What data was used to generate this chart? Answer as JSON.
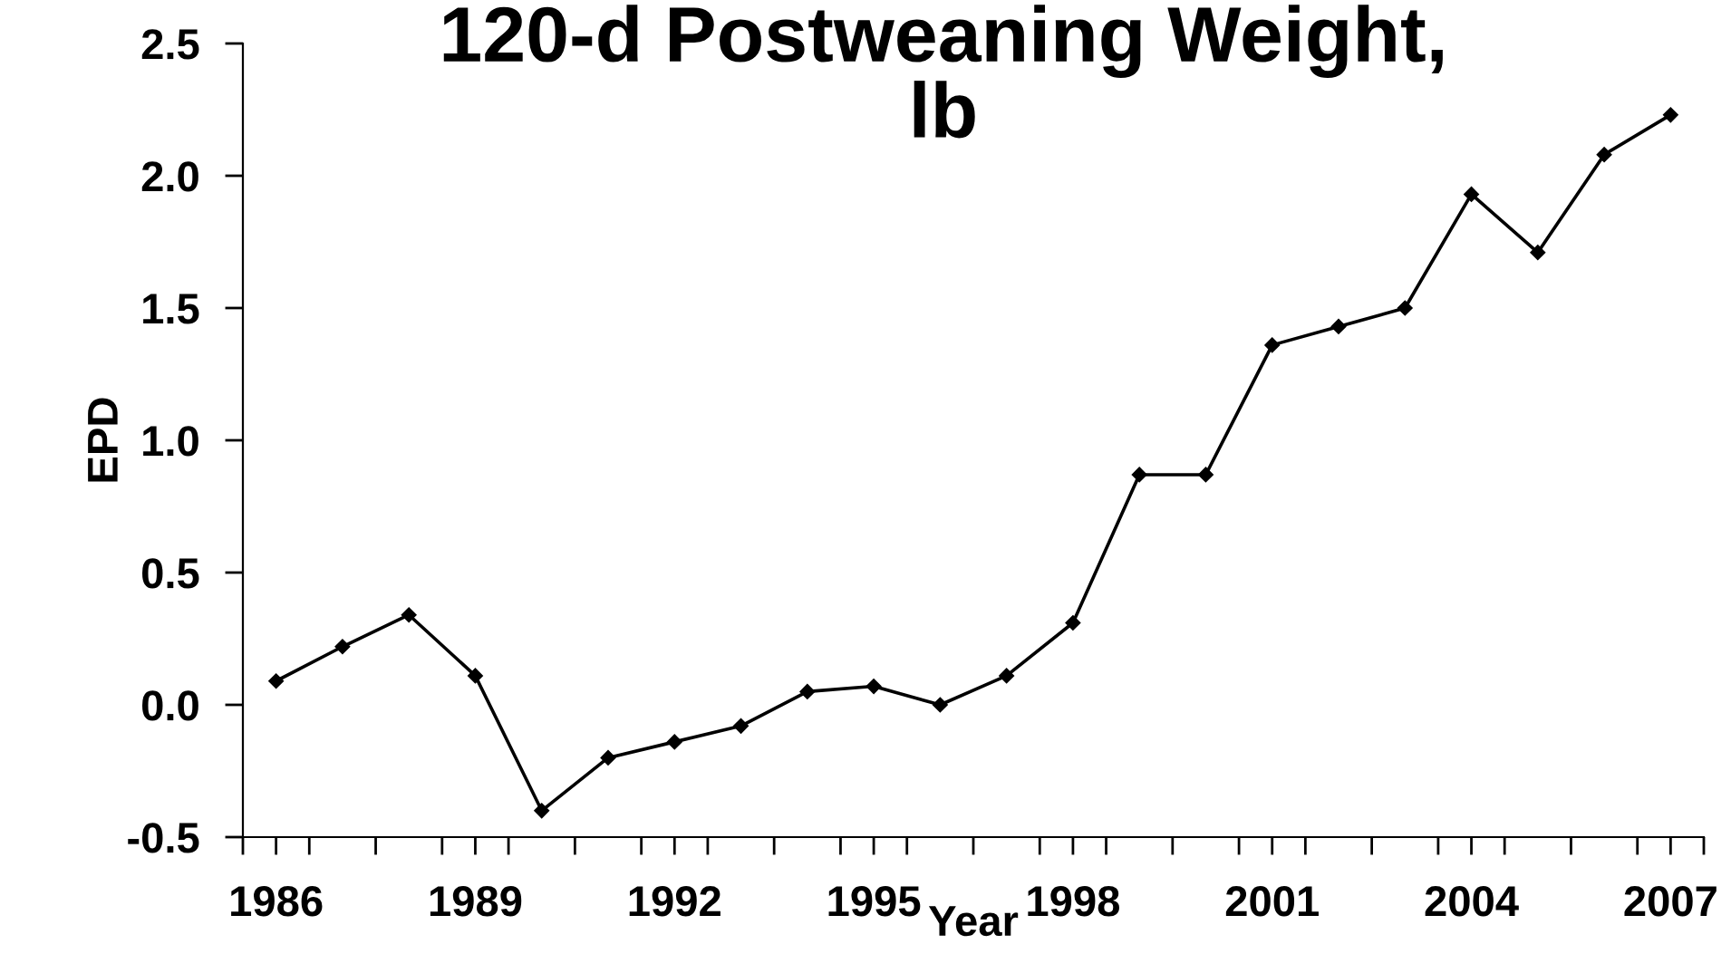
{
  "chart_data": {
    "type": "line",
    "title": "120-d Postweaning Weight,\nlb",
    "xlabel": "Year",
    "ylabel": "EPD",
    "x": [
      1986,
      1987,
      1988,
      1989,
      1990,
      1991,
      1992,
      1993,
      1994,
      1995,
      1996,
      1997,
      1998,
      1999,
      2000,
      2001,
      2002,
      2003,
      2004,
      2005,
      2006,
      2007
    ],
    "series": [
      {
        "color": "#000000",
        "values": [
          0.09,
          0.22,
          0.34,
          0.11,
          -0.4,
          -0.2,
          -0.14,
          -0.08,
          0.05,
          0.07,
          0.0,
          0.11,
          0.31,
          0.87,
          0.87,
          1.36,
          1.43,
          1.5,
          1.93,
          1.71,
          2.08,
          2.23
        ]
      }
    ],
    "xlim": [
      1985.5,
      2007.5
    ],
    "xticks": [
      {
        "value": 1985.5,
        "label": null
      },
      {
        "value": 1986.5,
        "label": null
      },
      {
        "value": 1987.5,
        "label": null
      },
      {
        "value": 1988.5,
        "label": null
      },
      {
        "value": 1989.5,
        "label": null
      },
      {
        "value": 1990.5,
        "label": null
      },
      {
        "value": 1991.5,
        "label": null
      },
      {
        "value": 1992.5,
        "label": null
      },
      {
        "value": 1993.5,
        "label": null
      },
      {
        "value": 1994.5,
        "label": null
      },
      {
        "value": 1995.5,
        "label": null
      },
      {
        "value": 1996.5,
        "label": null
      },
      {
        "value": 1997.5,
        "label": null
      },
      {
        "value": 1998.5,
        "label": null
      },
      {
        "value": 1999.5,
        "label": null
      },
      {
        "value": 2000.5,
        "label": null
      },
      {
        "value": 2001.5,
        "label": null
      },
      {
        "value": 2002.5,
        "label": null
      },
      {
        "value": 2003.5,
        "label": null
      },
      {
        "value": 2004.5,
        "label": null
      },
      {
        "value": 2005.5,
        "label": null
      },
      {
        "value": 2006.5,
        "label": null
      },
      {
        "value": 2007.5,
        "label": null
      },
      1986,
      1989,
      1992,
      1995,
      1998,
      2001,
      2004,
      2007
    ],
    "ylim": [
      -0.5,
      2.5
    ],
    "yticks": [
      {
        "value": -0.5,
        "label": "-0.5"
      },
      {
        "value": 0,
        "label": "0.0"
      },
      {
        "value": 0.5,
        "label": "0.5"
      },
      {
        "value": 1,
        "label": "1.0"
      },
      {
        "value": 1.5,
        "label": "1.5"
      },
      {
        "value": 2,
        "label": "2.0"
      },
      {
        "value": 2.5,
        "label": "2.5"
      }
    ],
    "grid": false,
    "legend": false,
    "marker": "diamond",
    "line_style": "solid"
  }
}
